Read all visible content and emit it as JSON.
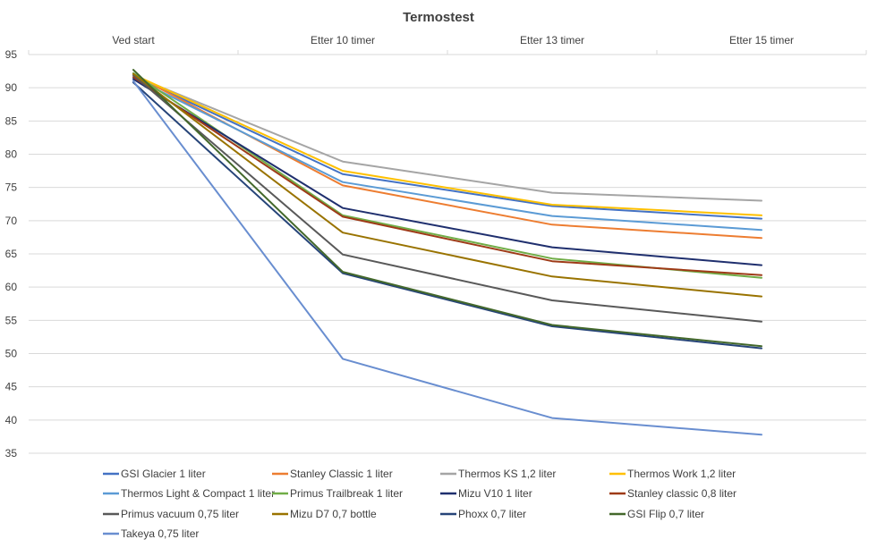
{
  "chart_data": {
    "type": "line",
    "title": "Termostest",
    "categories": [
      "Ved start",
      "Etter 10 timer",
      "Etter 13 timer",
      "Etter 15 timer"
    ],
    "ylim": [
      35,
      95
    ],
    "yticks": [
      35,
      40,
      45,
      50,
      55,
      60,
      65,
      70,
      75,
      80,
      85,
      90,
      95
    ],
    "grid": true,
    "legend_position": "bottom",
    "series": [
      {
        "name": "GSI Glacier 1 liter",
        "color": "#4472C4",
        "values": [
          91.8,
          77.0,
          72.2,
          70.3
        ]
      },
      {
        "name": "Stanley Classic 1 liter",
        "color": "#ED7D31",
        "values": [
          92.0,
          75.3,
          69.4,
          67.4
        ]
      },
      {
        "name": "Thermos KS 1,2 liter",
        "color": "#A5A5A5",
        "values": [
          91.8,
          78.9,
          74.2,
          73.0
        ]
      },
      {
        "name": "Thermos Work 1,2 liter",
        "color": "#FFC000",
        "values": [
          92.0,
          77.5,
          72.4,
          70.8
        ]
      },
      {
        "name": "Thermos Light & Compact 1 liter",
        "color": "#5B9BD5",
        "values": [
          91.5,
          75.8,
          70.7,
          68.6
        ]
      },
      {
        "name": "Primus Trailbreak 1 liter",
        "color": "#70AD47",
        "values": [
          92.2,
          70.8,
          64.3,
          61.4
        ]
      },
      {
        "name": "Mizu V10 1 liter",
        "color": "#1F2F6E",
        "values": [
          91.3,
          71.9,
          66.0,
          63.3
        ]
      },
      {
        "name": "Stanley classic 0,8 liter",
        "color": "#9E3A17",
        "values": [
          91.6,
          70.6,
          63.9,
          61.8
        ]
      },
      {
        "name": "Primus vacuum 0,75 liter",
        "color": "#595959",
        "values": [
          91.9,
          64.9,
          58.0,
          54.8
        ]
      },
      {
        "name": "Mizu D7 0,7 bottle",
        "color": "#997300",
        "values": [
          92.1,
          68.2,
          61.6,
          58.6
        ]
      },
      {
        "name": "Phoxx 0,7 liter",
        "color": "#264478",
        "values": [
          90.8,
          62.1,
          54.1,
          50.8
        ]
      },
      {
        "name": "GSI Flip 0,7 liter",
        "color": "#43682B",
        "values": [
          92.7,
          62.3,
          54.3,
          51.1
        ]
      },
      {
        "name": "Takeya 0,75 liter",
        "color": "#698ED0",
        "values": [
          91.0,
          49.2,
          40.3,
          37.8
        ]
      }
    ]
  }
}
